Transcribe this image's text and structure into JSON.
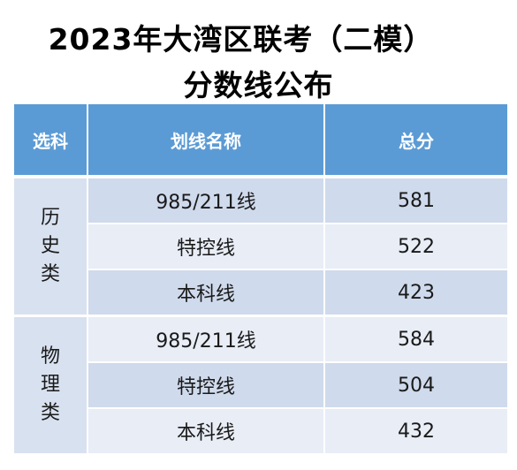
{
  "title": {
    "line1": "2023年大湾区联考（二模）",
    "line2": "分数线公布"
  },
  "table": {
    "headers": [
      "选科",
      "划线名称",
      "总分"
    ],
    "groups": [
      {
        "subject": [
          "历",
          "史",
          "类"
        ],
        "rows": [
          {
            "name": "985/211线",
            "score": "581"
          },
          {
            "name": "特控线",
            "score": "522"
          },
          {
            "name": "本科线",
            "score": "423"
          }
        ]
      },
      {
        "subject": [
          "物",
          "理",
          "类"
        ],
        "rows": [
          {
            "name": "985/211线",
            "score": "584"
          },
          {
            "name": "特控线",
            "score": "504"
          },
          {
            "name": "本科线",
            "score": "432"
          }
        ]
      }
    ]
  },
  "colors": {
    "header_bg": "#5b9bd5",
    "row_dark": "#cfdaec",
    "row_light": "#e8edf6"
  }
}
